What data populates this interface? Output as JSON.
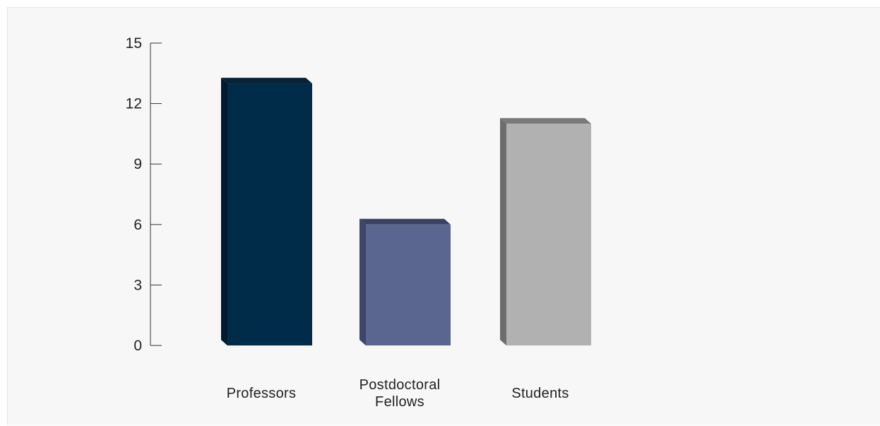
{
  "chart_data": {
    "type": "bar",
    "title": "",
    "xlabel": "",
    "ylabel": "",
    "categories": [
      "Professors",
      "Postdoctoral Fellows",
      "Students"
    ],
    "category_lines": [
      [
        "Professors"
      ],
      [
        "Postdoctoral",
        "Fellows"
      ],
      [
        "Students"
      ]
    ],
    "values": [
      13,
      6,
      11
    ],
    "ylim": [
      0,
      15
    ],
    "yticks": [
      0,
      3,
      6,
      9,
      12,
      15
    ],
    "grid": false,
    "legend": "none",
    "style": "3d",
    "colors": [
      {
        "front": "#002c4a",
        "side": "#001a2e",
        "top": "#0a2236"
      },
      {
        "front": "#5a6590",
        "side": "#3d4668",
        "top": "#3a4262"
      },
      {
        "front": "#b1b1b1",
        "side": "#6d6d6d",
        "top": "#7a7a7a"
      }
    ]
  }
}
